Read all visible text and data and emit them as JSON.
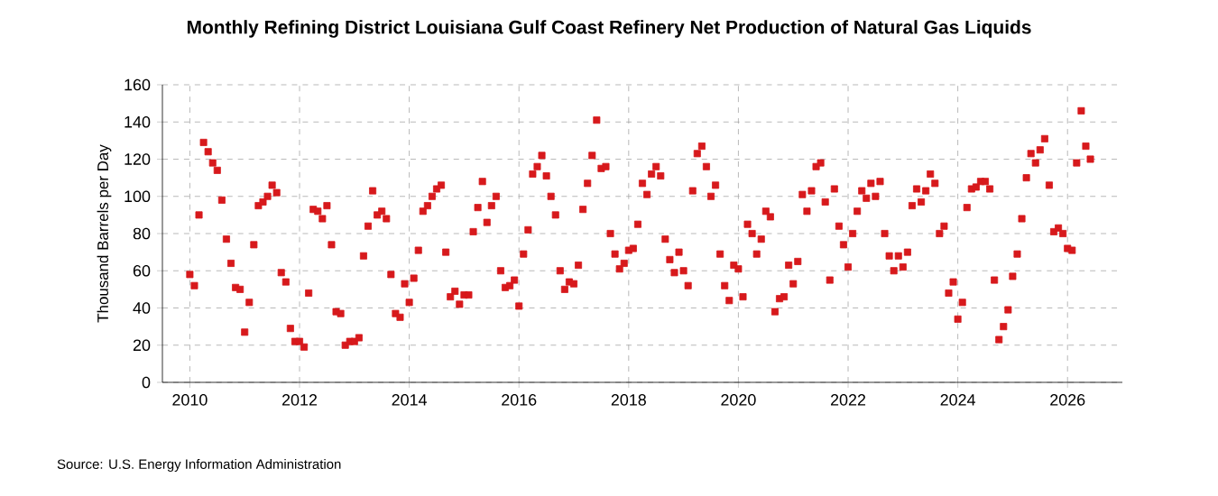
{
  "chart_data": {
    "type": "scatter",
    "title": "Monthly Refining District Louisiana Gulf Coast Refinery Net Production of Natural Gas Liquids",
    "ylabel": "Thousand Barrels per Day",
    "annotations": [
      "Source: U.S. Energy Information Administration"
    ],
    "x": [
      "2010-01",
      "2010-02",
      "2010-03",
      "2010-04",
      "2010-05",
      "2010-06",
      "2010-07",
      "2010-08",
      "2010-09",
      "2010-10",
      "2010-11",
      "2010-12",
      "2011-01",
      "2011-02",
      "2011-03",
      "2011-04",
      "2011-05",
      "2011-06",
      "2011-07",
      "2011-08",
      "2011-09",
      "2011-10",
      "2011-11",
      "2011-12",
      "2012-01",
      "2012-02",
      "2012-03",
      "2012-04",
      "2012-05",
      "2012-06",
      "2012-07",
      "2012-08",
      "2012-09",
      "2012-10",
      "2012-11",
      "2012-12",
      "2013-01",
      "2013-02",
      "2013-03",
      "2013-04",
      "2013-05",
      "2013-06",
      "2013-07",
      "2013-08",
      "2013-09",
      "2013-10",
      "2013-11",
      "2013-12",
      "2014-01",
      "2014-02",
      "2014-03",
      "2014-04",
      "2014-05",
      "2014-06",
      "2014-07",
      "2014-08",
      "2014-09",
      "2014-10",
      "2014-11",
      "2014-12",
      "2015-01",
      "2015-02",
      "2015-03",
      "2015-04",
      "2015-05",
      "2015-06",
      "2015-07",
      "2015-08",
      "2015-09",
      "2015-10",
      "2015-11",
      "2015-12",
      "2016-01",
      "2016-02",
      "2016-03",
      "2016-04",
      "2016-05",
      "2016-06",
      "2016-07",
      "2016-08",
      "2016-09",
      "2016-10",
      "2016-11",
      "2016-12",
      "2017-01",
      "2017-02",
      "2017-03",
      "2017-04",
      "2017-05",
      "2017-06",
      "2017-07",
      "2017-08",
      "2017-09",
      "2017-10",
      "2017-11",
      "2017-12",
      "2018-01",
      "2018-02",
      "2018-03",
      "2018-04",
      "2018-05",
      "2018-06",
      "2018-07",
      "2018-08",
      "2018-09",
      "2018-10",
      "2018-11",
      "2018-12",
      "2019-01",
      "2019-02",
      "2019-03",
      "2019-04",
      "2019-05",
      "2019-06",
      "2019-07",
      "2019-08",
      "2019-09",
      "2019-10",
      "2019-11",
      "2019-12",
      "2020-01",
      "2020-02",
      "2020-03",
      "2020-04",
      "2020-05",
      "2020-06",
      "2020-07",
      "2020-08",
      "2020-09",
      "2020-10",
      "2020-11",
      "2020-12",
      "2021-01",
      "2021-02",
      "2021-03",
      "2021-04",
      "2021-05",
      "2021-06",
      "2021-07",
      "2021-08",
      "2021-09",
      "2021-10",
      "2021-11",
      "2021-12",
      "2022-01",
      "2022-02",
      "2022-03",
      "2022-04",
      "2022-05",
      "2022-06",
      "2022-07",
      "2022-08",
      "2022-09",
      "2022-10",
      "2022-11",
      "2022-12",
      "2023-01",
      "2023-02",
      "2023-03",
      "2023-04",
      "2023-05",
      "2023-06",
      "2023-07",
      "2023-08",
      "2023-09",
      "2023-10",
      "2023-11",
      "2023-12",
      "2024-01",
      "2024-02",
      "2024-03",
      "2024-04",
      "2024-05",
      "2024-06",
      "2024-07",
      "2024-08",
      "2024-09",
      "2024-10",
      "2024-11",
      "2024-12",
      "2025-01",
      "2025-02",
      "2025-03",
      "2025-04",
      "2025-05",
      "2025-06",
      "2025-07",
      "2025-08",
      "2025-09",
      "2025-10",
      "2025-11",
      "2025-12",
      "2026-01",
      "2026-02",
      "2026-03",
      "2026-04",
      "2026-05",
      "2026-06"
    ],
    "series": [
      {
        "color": "#d7191c",
        "values": [
          58,
          52,
          90,
          129,
          124,
          118,
          114,
          98,
          77,
          64,
          51,
          50,
          27,
          43,
          74,
          95,
          97,
          100,
          106,
          102,
          59,
          54,
          29,
          22,
          22,
          19,
          48,
          93,
          92,
          88,
          95,
          74,
          38,
          37,
          20,
          22,
          22,
          24,
          68,
          84,
          103,
          90,
          92,
          88,
          58,
          37,
          35,
          53,
          43,
          56,
          71,
          92,
          95,
          100,
          104,
          106,
          70,
          46,
          49,
          42,
          47,
          47,
          81,
          94,
          108,
          86,
          95,
          100,
          60,
          51,
          52,
          55,
          41,
          69,
          82,
          112,
          116,
          122,
          111,
          100,
          90,
          60,
          50,
          54,
          53,
          63,
          93,
          107,
          122,
          141,
          115,
          116,
          80,
          69,
          61,
          64,
          71,
          72,
          85,
          107,
          101,
          112,
          116,
          111,
          77,
          66,
          59,
          70,
          60,
          52,
          103,
          123,
          127,
          116,
          100,
          106,
          69,
          52,
          44,
          63,
          61,
          46,
          85,
          80,
          69,
          77,
          92,
          89,
          38,
          45,
          46,
          63,
          53,
          65,
          101,
          92,
          103,
          116,
          118,
          97,
          55,
          104,
          84,
          74,
          62,
          80,
          92,
          103,
          99,
          107,
          100,
          108,
          80,
          68,
          60,
          68,
          62,
          70,
          95,
          104,
          97,
          103,
          112,
          107,
          80,
          84,
          48,
          54,
          34,
          43,
          94,
          104,
          105,
          108,
          108,
          104,
          55,
          23,
          30,
          39,
          57,
          69,
          88,
          110,
          123,
          118,
          125,
          131,
          106,
          81,
          83,
          80,
          72,
          71,
          118,
          146,
          127,
          120
        ]
      }
    ],
    "xlim": [
      "2009-07",
      "2027-01"
    ],
    "xticks": [
      "2010",
      "2012",
      "2014",
      "2016",
      "2018",
      "2020",
      "2022",
      "2024",
      "2026"
    ],
    "ylim": [
      0,
      160
    ],
    "yticks": [
      0,
      20,
      40,
      60,
      80,
      100,
      120,
      140,
      160
    ],
    "grid": true,
    "marker": "square"
  }
}
